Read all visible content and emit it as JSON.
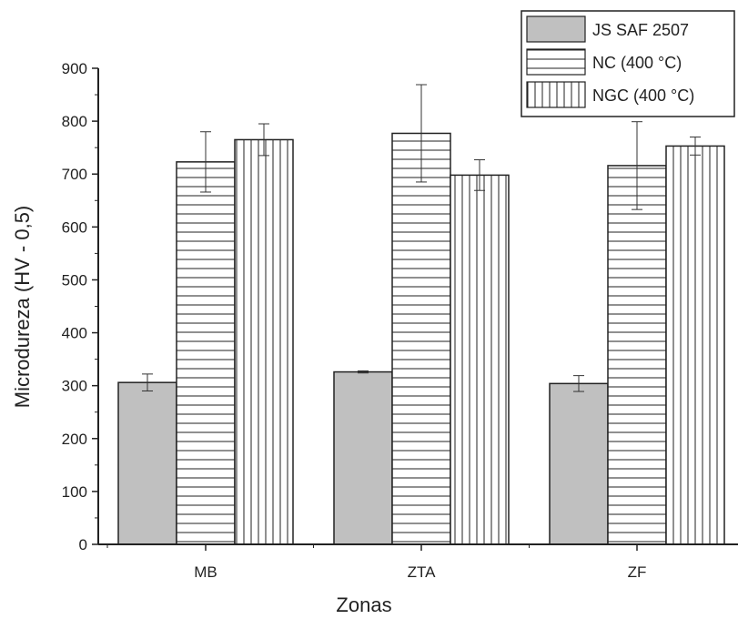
{
  "chart_data": {
    "type": "bar",
    "xlabel": "Zonas",
    "ylabel": "Microdureza (HV - 0,5)",
    "ylim": [
      0,
      900
    ],
    "yticks": [
      0,
      100,
      200,
      300,
      400,
      500,
      600,
      700,
      800,
      900
    ],
    "categories": [
      "MB",
      "ZTA",
      "ZF"
    ],
    "grid": false,
    "legend_position": "top-right",
    "series": [
      {
        "name": "JS SAF 2507",
        "pattern": "solid",
        "color": "#c0c0c0",
        "values": [
          306,
          326,
          304
        ],
        "errors": [
          16,
          2,
          15
        ]
      },
      {
        "name": "NC (400 °C)",
        "pattern": "horizontal-lines",
        "color": "#ffffff",
        "values": [
          723,
          777,
          716
        ],
        "errors": [
          57,
          92,
          83
        ]
      },
      {
        "name": "NGC (400 °C)",
        "pattern": "vertical-lines",
        "color": "#ffffff",
        "values": [
          765,
          698,
          753
        ],
        "errors": [
          30,
          29,
          17
        ]
      }
    ]
  }
}
